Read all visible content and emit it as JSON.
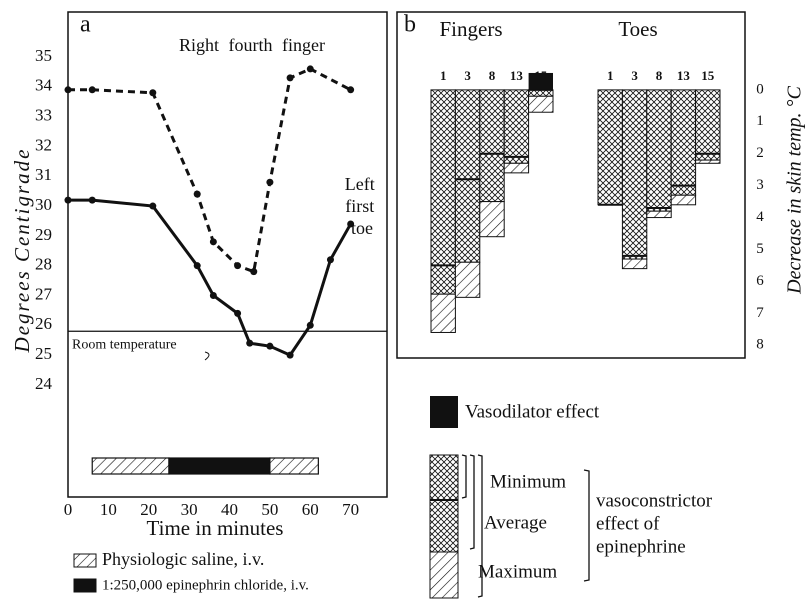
{
  "chart_data": [
    {
      "type": "line",
      "label": "a",
      "ylabel": "Degrees Centigrade",
      "xlabel": "Time in minutes",
      "xlim": [
        0,
        79
      ],
      "ylim": [
        20.24,
        36.51
      ],
      "xticks": [
        0,
        10,
        20,
        30,
        40,
        50,
        60,
        70
      ],
      "yticks": [
        24,
        25,
        26,
        27,
        28,
        29,
        30,
        31,
        32,
        33,
        34,
        35
      ],
      "series": [
        {
          "name": "Right fourth finger",
          "color": "#111",
          "style": "dashed",
          "x": [
            0,
            6,
            21,
            32,
            36,
            42,
            46,
            50,
            55,
            60,
            70
          ],
          "values": [
            33.9,
            33.9,
            33.8,
            30.4,
            28.8,
            28.0,
            27.8,
            30.8,
            34.3,
            34.6,
            33.9
          ]
        },
        {
          "name": "Left first toe",
          "color": "#111",
          "style": "solid",
          "x": [
            0,
            6,
            21,
            32,
            36,
            42,
            45,
            50,
            55,
            60,
            65,
            70
          ],
          "values": [
            30.2,
            30.2,
            30.0,
            28.0,
            27.0,
            26.4,
            25.4,
            25.3,
            25.0,
            26.0,
            28.2,
            29.4
          ]
        }
      ],
      "annotations": [
        {
          "text": "Room temperature",
          "value": 25.8
        }
      ],
      "periods": [
        {
          "start": 6,
          "end": 25,
          "fill": "hatch"
        },
        {
          "start": 25,
          "end": 50,
          "fill": "black"
        },
        {
          "start": 50,
          "end": 62,
          "fill": "hatch"
        }
      ],
      "legend": [
        {
          "label": "Physiologic saline, i.v.",
          "fill": "hatch"
        },
        {
          "label": "1:250,000 epinephrin chloride, i.v.",
          "fill": "black"
        }
      ]
    },
    {
      "type": "bar",
      "label": "b",
      "ylabel": "Decrease in skin temp. °C",
      "ylim": [
        -2.44,
        8.4
      ],
      "y_inverted": true,
      "yticks": [
        0,
        1,
        2,
        3,
        4,
        5,
        6,
        7,
        8
      ],
      "groups": [
        {
          "name": "Fingers",
          "categories": [
            "1",
            "3",
            "8",
            "13",
            "15"
          ],
          "minimum": [
            5.5,
            2.8,
            2.0,
            2.1,
            0.0
          ],
          "average": [
            6.4,
            5.4,
            3.5,
            2.3,
            0.2
          ],
          "maximum": [
            7.6,
            6.5,
            4.6,
            2.6,
            0.7
          ],
          "vasodilator": [
            null,
            null,
            null,
            null,
            -0.53
          ]
        },
        {
          "name": "Toes",
          "categories": [
            "1",
            "3",
            "8",
            "13",
            "15"
          ],
          "minimum": [
            3.6,
            5.2,
            3.7,
            3.0,
            2.0
          ],
          "average": [
            3.6,
            5.3,
            3.8,
            3.3,
            2.2
          ],
          "maximum": [
            3.6,
            5.6,
            4.0,
            3.6,
            2.3
          ],
          "vasodilator": [
            null,
            null,
            null,
            null,
            null
          ]
        }
      ],
      "legend": {
        "vasodilator": "Vasodilator effect",
        "minimum": "Minimum",
        "average": "Average",
        "maximum": "Maximum",
        "note": [
          "vasoconstrictor",
          "effect of",
          "epinephrine"
        ]
      }
    }
  ]
}
